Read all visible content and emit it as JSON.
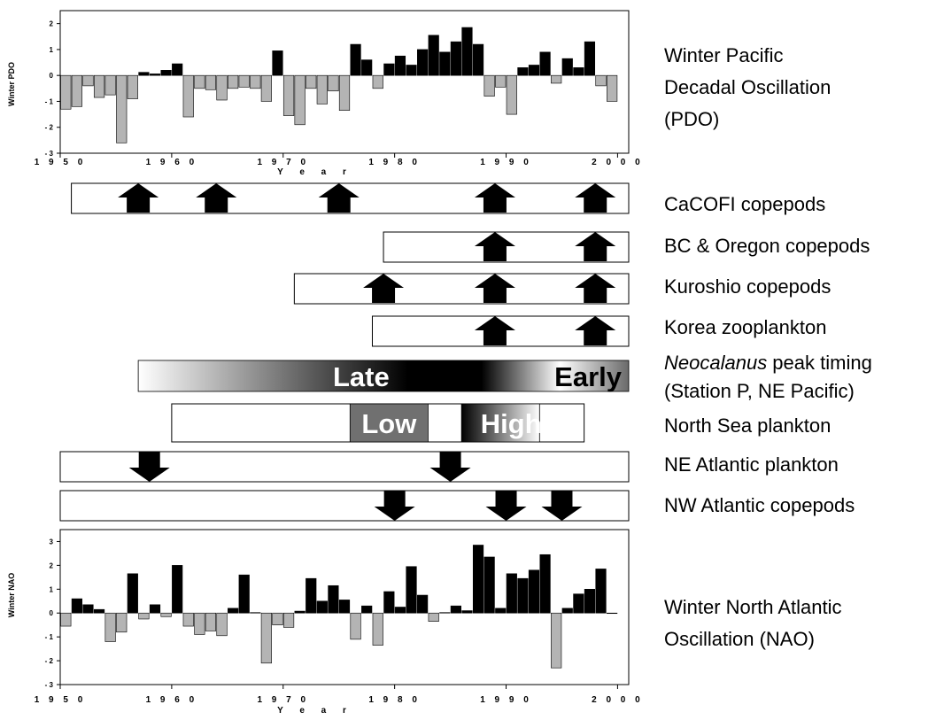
{
  "chart_data": [
    {
      "type": "bar",
      "ylabel": "Winter PDO",
      "xlabel": "Y e a r",
      "ylim": [
        -3,
        2.5
      ],
      "xlim": [
        1950,
        2001
      ],
      "yticks": [
        2,
        1,
        0,
        -1,
        -2,
        -3
      ],
      "ytick_labels": [
        "2",
        "1",
        "0",
        "- 1",
        "- 2",
        "- 3"
      ],
      "xticks": [
        1950,
        1960,
        1970,
        1980,
        1990,
        2000
      ],
      "xtick_labels": [
        "1 9 5 0",
        "1 9 6 0",
        "1 9 7 0",
        "1 9 8 0",
        "1 9 9 0",
        "2 0 0 0"
      ],
      "x": [
        1950,
        1951,
        1952,
        1953,
        1954,
        1955,
        1956,
        1957,
        1958,
        1959,
        1960,
        1961,
        1962,
        1963,
        1964,
        1965,
        1966,
        1967,
        1968,
        1969,
        1970,
        1971,
        1972,
        1973,
        1974,
        1975,
        1976,
        1977,
        1978,
        1979,
        1980,
        1981,
        1982,
        1983,
        1984,
        1985,
        1986,
        1987,
        1988,
        1989,
        1990,
        1991,
        1992,
        1993,
        1994,
        1995,
        1996,
        1997,
        1998,
        1999
      ],
      "values": [
        -1.3,
        -1.2,
        -0.4,
        -0.85,
        -0.75,
        -2.6,
        -0.9,
        0.12,
        0.06,
        0.2,
        0.45,
        -1.6,
        -0.5,
        -0.55,
        -0.95,
        -0.5,
        -0.45,
        -0.5,
        -1.0,
        0.95,
        -1.55,
        -1.9,
        -0.5,
        -1.1,
        -0.6,
        -1.35,
        1.2,
        0.6,
        -0.5,
        0.45,
        0.75,
        0.4,
        1.0,
        1.55,
        0.9,
        1.3,
        1.85,
        1.2,
        -0.8,
        -0.45,
        -1.5,
        0.3,
        0.4,
        0.9,
        -0.3,
        0.65,
        0.3,
        1.3,
        -0.4,
        -1.0
      ]
    },
    {
      "type": "bar",
      "ylabel": "Winter NAO",
      "xlabel": "Y e a r",
      "ylim": [
        -3,
        3.5
      ],
      "xlim": [
        1950,
        2001
      ],
      "yticks": [
        3,
        2,
        1,
        0,
        -1,
        -2,
        -3
      ],
      "ytick_labels": [
        "3",
        "2",
        "1",
        "0",
        "- 1",
        "- 2",
        "- 3"
      ],
      "xticks": [
        1950,
        1960,
        1970,
        1980,
        1990,
        2000
      ],
      "xtick_labels": [
        "1 9 5 0",
        "1 9 6 0",
        "1 9 7 0",
        "1 9 8 0",
        "1 9 9 0",
        "2 0 0 0"
      ],
      "x": [
        1950,
        1951,
        1952,
        1953,
        1954,
        1955,
        1956,
        1957,
        1958,
        1959,
        1960,
        1961,
        1962,
        1963,
        1964,
        1965,
        1966,
        1967,
        1968,
        1969,
        1970,
        1971,
        1972,
        1973,
        1974,
        1975,
        1976,
        1977,
        1978,
        1979,
        1980,
        1981,
        1982,
        1983,
        1984,
        1985,
        1986,
        1987,
        1988,
        1989,
        1990,
        1991,
        1992,
        1993,
        1994,
        1995,
        1996,
        1997,
        1998,
        1999
      ],
      "values": [
        -0.55,
        0.6,
        0.35,
        0.15,
        -1.2,
        -0.8,
        1.65,
        -0.25,
        0.35,
        -0.15,
        2.0,
        -0.55,
        -0.9,
        -0.75,
        -0.95,
        0.2,
        1.6,
        0.02,
        -2.1,
        -0.5,
        -0.6,
        0.08,
        1.45,
        0.5,
        1.15,
        0.55,
        -1.1,
        0.3,
        -1.35,
        0.9,
        0.25,
        1.95,
        0.75,
        -0.35,
        0.02,
        0.3,
        0.1,
        2.85,
        2.35,
        0.2,
        1.65,
        1.45,
        1.8,
        2.45,
        -2.3,
        0.2,
        0.8,
        1.0,
        1.85,
        0.0
      ]
    }
  ],
  "labels": {
    "pdo_l1": "Winter Pacific",
    "pdo_l2": "Decadal Oscillation",
    "pdo_l3": "(PDO)",
    "cacofi": "CaCOFI copepods",
    "bc_oregon": "BC & Oregon copepods",
    "kuroshio": "Kuroshio copepods",
    "korea": "Korea zooplankton",
    "neo_italic": "Neocalanus",
    "neo_rest": " peak timing",
    "neo_l2": "(Station P, NE Pacific)",
    "north_sea": "North Sea plankton",
    "ne_atl": "NE Atlantic plankton",
    "nw_atl": "NW Atlantic copepods",
    "nao_l1": "Winter North Atlantic",
    "nao_l2": "Oscillation (NAO)"
  },
  "bar_text": {
    "late": "Late",
    "early": "Early",
    "low": "Low",
    "high": "High"
  },
  "timelines": {
    "cacofi": {
      "start": 1951,
      "end": 2001,
      "arrows_up": [
        1957,
        1964,
        1975,
        1989,
        1998
      ]
    },
    "bc_oregon": {
      "start": 1979,
      "end": 2001,
      "arrows_up": [
        1989,
        1998
      ]
    },
    "kuroshio": {
      "start": 1971,
      "end": 2001,
      "arrows_up": [
        1979,
        1989,
        1998
      ]
    },
    "korea": {
      "start": 1978,
      "end": 2001,
      "arrows_up": [
        1989,
        1998
      ]
    },
    "neocalanus": {
      "start": 1957,
      "end": 2001
    },
    "north_sea": {
      "start": 1960,
      "end": 1997,
      "low": [
        1976,
        1983
      ],
      "high": [
        1986,
        1993
      ]
    },
    "ne_atlantic": {
      "start": 1950,
      "end": 2001,
      "arrows_down": [
        1958,
        1985
      ]
    },
    "nw_atlantic": {
      "start": 1950,
      "end": 2001,
      "arrows_down": [
        1980,
        1990,
        1995
      ]
    }
  }
}
